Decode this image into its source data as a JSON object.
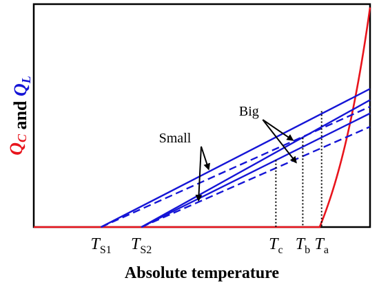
{
  "chart_data": {
    "type": "line",
    "title": "",
    "xlabel": "Absolute temperature",
    "ylabel": {
      "parts": [
        {
          "text": "Q",
          "sub": "C",
          "color": "#e8141c",
          "italic": true
        },
        {
          "text": " and ",
          "sub": "",
          "color": "#000000",
          "italic": false
        },
        {
          "text": "Q",
          "sub": "L",
          "color": "#1515d6",
          "italic": true
        }
      ]
    },
    "x_ticks": [
      {
        "id": "TS1",
        "main": "T",
        "sub": "S1",
        "x": 0.2
      },
      {
        "id": "TS2",
        "main": "T",
        "sub": "S2",
        "x": 0.32
      },
      {
        "id": "Tc",
        "main": "T",
        "sub": "c",
        "x": 0.72
      },
      {
        "id": "Tb",
        "main": "T",
        "sub": "b",
        "x": 0.8
      },
      {
        "id": "Ta",
        "main": "T",
        "sub": "a",
        "x": 0.856
      }
    ],
    "xlim": [
      0,
      1
    ],
    "ylim": [
      0,
      1
    ],
    "grid": false,
    "series": [
      {
        "style": "solid",
        "color": "#e8141c",
        "kind": "exp",
        "x0": 0.0,
        "x1": 1.0
      },
      {
        "style": "solid",
        "color": "#1515d6",
        "x": [
          0.2,
          1.0
        ],
        "y": [
          0.0,
          0.62
        ]
      },
      {
        "style": "dashed",
        "color": "#1515d6",
        "x": [
          0.2,
          1.0
        ],
        "y": [
          0.0,
          0.54
        ]
      },
      {
        "style": "solid",
        "color": "#1515d6",
        "x": [
          0.32,
          1.0
        ],
        "y": [
          0.0,
          0.57
        ]
      },
      {
        "style": "solid",
        "color": "#1515d6",
        "x": [
          0.32,
          1.0
        ],
        "y": [
          0.0,
          0.51
        ]
      },
      {
        "style": "dashed",
        "color": "#1515d6",
        "x": [
          0.32,
          1.0
        ],
        "y": [
          0.0,
          0.45
        ]
      }
    ],
    "dotted_drops": [
      {
        "x": 0.72,
        "y": 0.3
      },
      {
        "x": 0.8,
        "y": 0.4
      },
      {
        "x": 0.856,
        "y": 0.52
      }
    ],
    "annotations": [
      {
        "id": "small",
        "text": "Small",
        "anchor": [
          0.42,
          0.38
        ],
        "targets": [
          [
            0.52,
            0.26
          ],
          [
            0.49,
            0.12
          ]
        ]
      },
      {
        "id": "big",
        "text": "Big",
        "anchor": [
          0.64,
          0.5
        ],
        "targets": [
          [
            0.77,
            0.39
          ],
          [
            0.78,
            0.29
          ]
        ]
      }
    ]
  }
}
